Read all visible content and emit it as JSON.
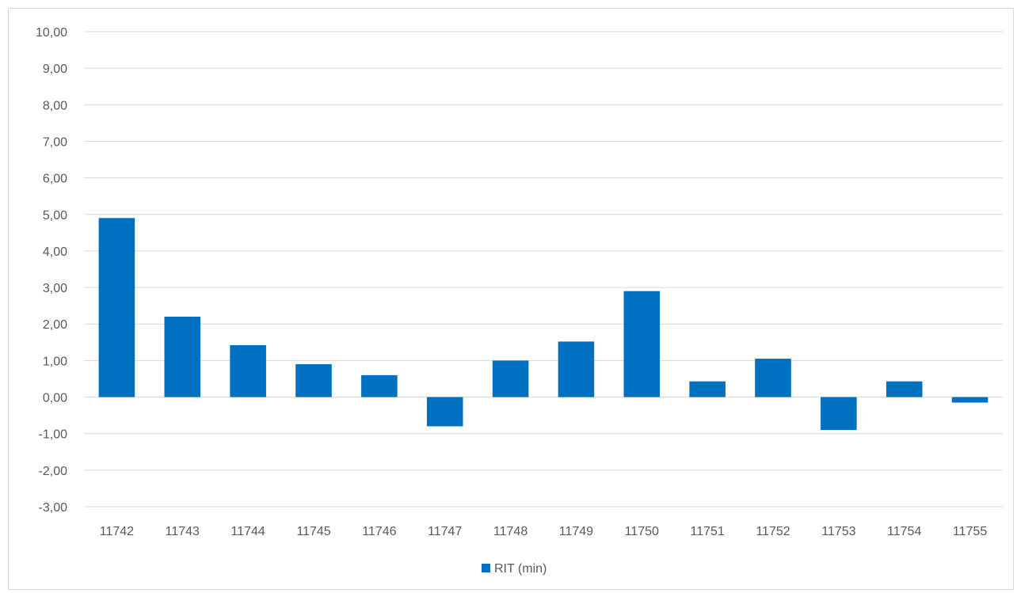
{
  "chart_data": {
    "type": "bar",
    "categories": [
      "11742",
      "11743",
      "11744",
      "11745",
      "11746",
      "11747",
      "11748",
      "11749",
      "11750",
      "11751",
      "11752",
      "11753",
      "11754",
      "11755"
    ],
    "series": [
      {
        "name": "RIT (min)",
        "color": "#0070C0",
        "values": [
          4.9,
          2.2,
          1.42,
          0.9,
          0.6,
          -0.8,
          1.0,
          1.52,
          2.9,
          0.43,
          1.05,
          -0.9,
          0.43,
          -0.15
        ]
      }
    ],
    "ylim": [
      -3,
      10
    ],
    "yticks": [
      "-3,00",
      "-2,00",
      "-1,00",
      "0,00",
      "1,00",
      "2,00",
      "3,00",
      "4,00",
      "5,00",
      "6,00",
      "7,00",
      "8,00",
      "9,00",
      "10,00"
    ],
    "grid": true,
    "legend_position": "bottom"
  }
}
